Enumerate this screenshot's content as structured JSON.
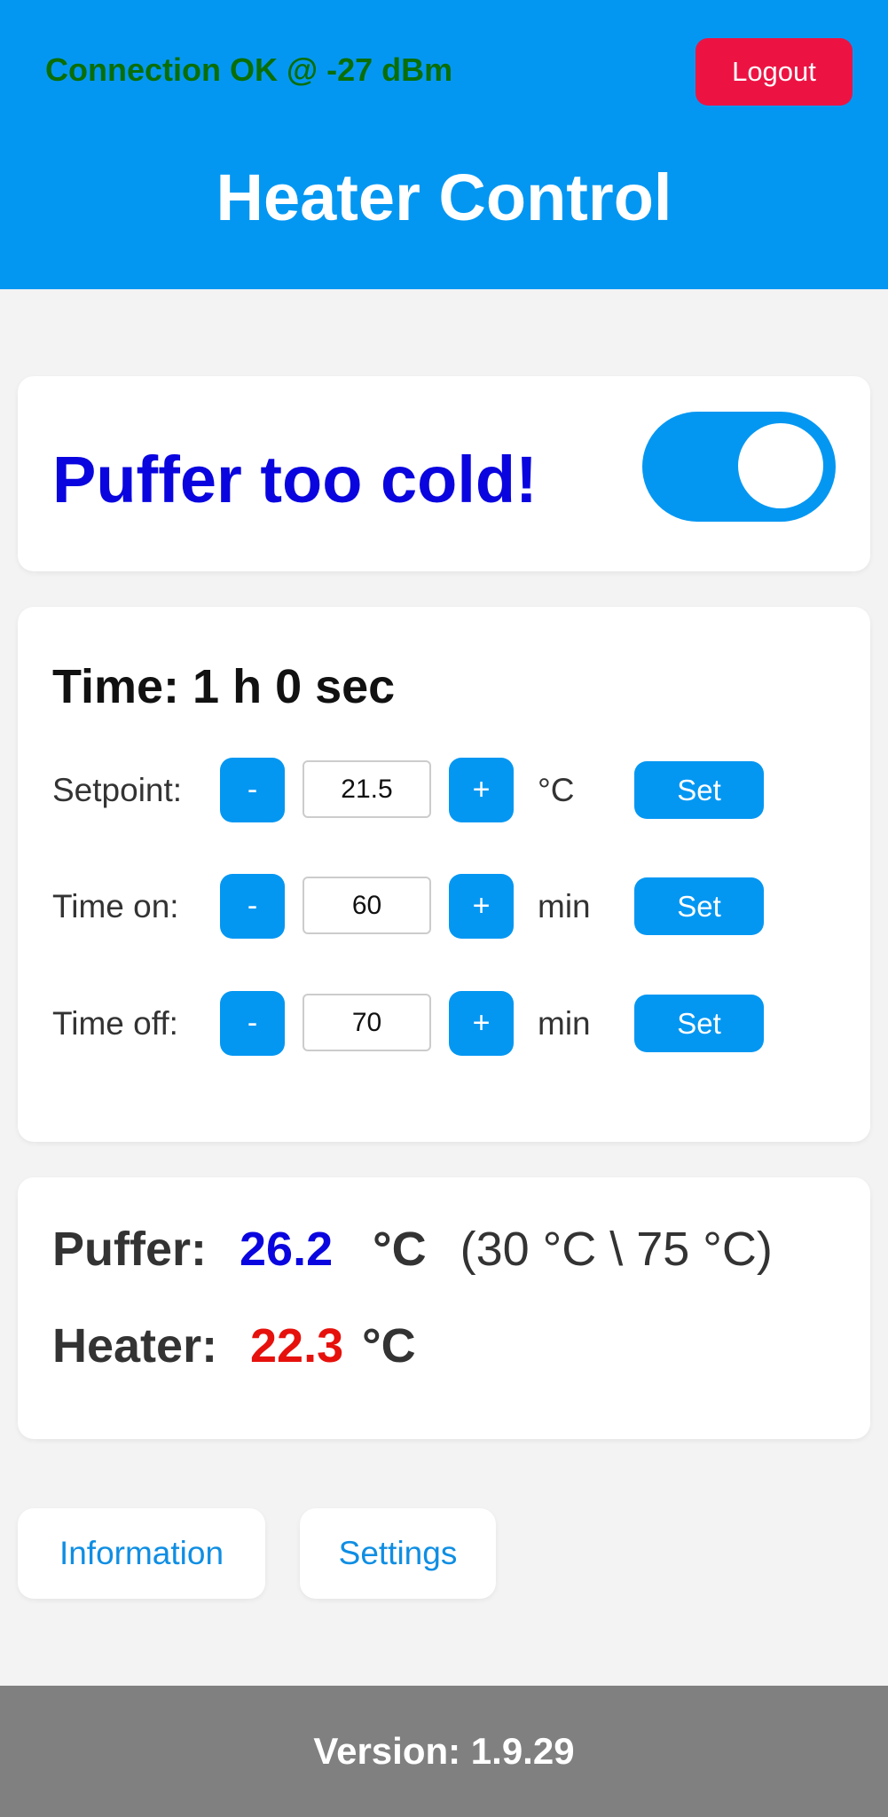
{
  "header": {
    "connection_status": "Connection OK @ -27 dBm",
    "logout_label": "Logout",
    "title": "Heater Control"
  },
  "status": {
    "message": "Puffer too cold!",
    "toggle_on": true
  },
  "controls": {
    "time_text": "Time: 1 h 0 sec",
    "rows": [
      {
        "label": "Setpoint:",
        "minus": "-",
        "value": "21.5",
        "plus": "+",
        "unit": "°C",
        "set_label": "Set"
      },
      {
        "label": "Time on:",
        "minus": "-",
        "value": "60",
        "plus": "+",
        "unit": "min",
        "set_label": "Set"
      },
      {
        "label": "Time off:",
        "minus": "-",
        "value": "70",
        "plus": "+",
        "unit": "min",
        "set_label": "Set"
      }
    ]
  },
  "temps": {
    "puffer_label": "Puffer:",
    "puffer_value": "26.2",
    "puffer_unit": "°C",
    "puffer_range": "(30 °C \\ 75 °C)",
    "heater_label": "Heater:",
    "heater_value": "22.3",
    "heater_unit": "°C"
  },
  "nav": {
    "information_label": "Information",
    "settings_label": "Settings"
  },
  "footer": {
    "version": "Version: 1.9.29"
  },
  "colors": {
    "primary": "#0497f2",
    "logout": "#ec1343",
    "connection_ok": "#0a6e08",
    "status_text": "#0a05df",
    "puffer_value": "#0a05df",
    "heater_value": "#e6110c",
    "footer": "#808080"
  }
}
